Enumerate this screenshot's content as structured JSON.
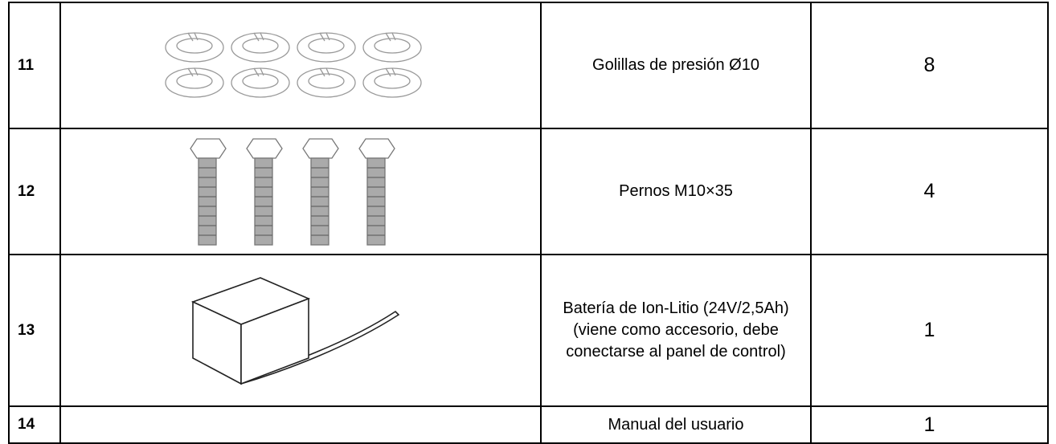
{
  "table": {
    "rows": [
      [
        "11",
        "Golillas de presión Ø10",
        "8"
      ],
      [
        "12",
        "Pernos M10×35",
        "4"
      ],
      [
        "13",
        "Batería de Ion-Litio (24V/2,5Ah) (viene como accesorio, debe conectarse al panel de control)",
        "1"
      ],
      [
        "14",
        "Manual del usuario",
        "1"
      ]
    ]
  }
}
